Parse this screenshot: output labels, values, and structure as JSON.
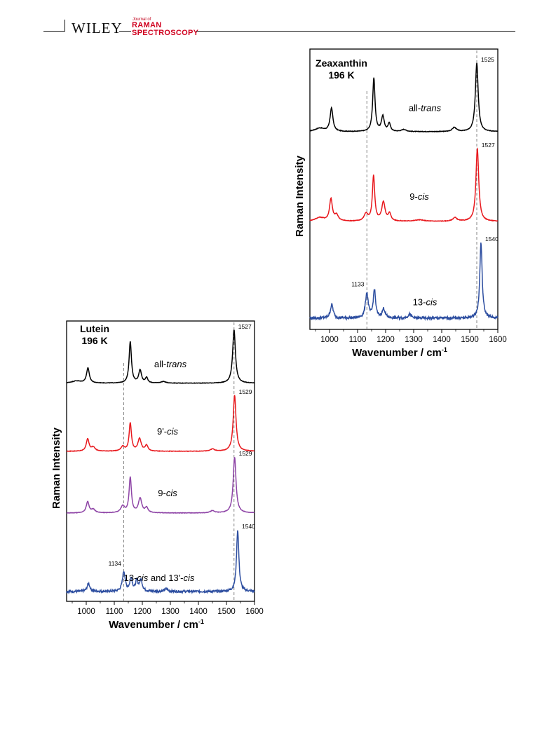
{
  "header": {
    "publisher": "WILEY",
    "journal_prefix": "Journal of",
    "journal_line1": "RAMAN",
    "journal_line2": "SPECTROSCOPY"
  },
  "chart_data": [
    {
      "type": "line",
      "title": "Zeaxanthin",
      "subtitle": "196 K",
      "xlabel": "Wavenumber / cm",
      "xlabel_sup": "-1",
      "ylabel": "Raman Intensity",
      "xlim": [
        930,
        1600
      ],
      "xticks": [
        1000,
        1100,
        1200,
        1300,
        1400,
        1500,
        1600
      ],
      "reference_lines": [
        1133,
        1525
      ],
      "series": [
        {
          "name": "all-trans",
          "label_prefix": "all-",
          "label_italic": "trans",
          "color": "#000000",
          "label_at": 1340,
          "baseline_frac": 0.295,
          "scale_frac": 0.245,
          "peaks": [
            [
              1007,
              0.34,
              6
            ],
            [
              1158,
              0.78,
              5
            ],
            [
              1190,
              0.22,
              6
            ],
            [
              1213,
              0.12,
              5
            ],
            [
              1265,
              0.03,
              10
            ],
            [
              1445,
              0.06,
              9
            ],
            [
              1525,
              1.0,
              6
            ],
            [
              965,
              0.05,
              20
            ]
          ],
          "peak_label": "1525",
          "peak_label_at": 1525
        },
        {
          "name": "9-cis",
          "label_prefix": "9-",
          "label_italic": "cis",
          "color": "#e8181d",
          "label_at": 1320,
          "baseline_frac": 0.615,
          "scale_frac": 0.26,
          "peaks": [
            [
              1005,
              0.3,
              6
            ],
            [
              1025,
              0.08,
              8
            ],
            [
              1130,
              0.1,
              8
            ],
            [
              1157,
              0.62,
              5
            ],
            [
              1192,
              0.26,
              7
            ],
            [
              1214,
              0.1,
              6
            ],
            [
              1320,
              0.02,
              20
            ],
            [
              1447,
              0.05,
              9
            ],
            [
              1527,
              1.0,
              6
            ],
            [
              965,
              0.05,
              20
            ]
          ],
          "peak_label": "1527",
          "peak_label_at": 1527
        },
        {
          "name": "13-cis",
          "label_prefix": "13-",
          "label_italic": "cis",
          "color": "#2d4ea0",
          "label_at": 1340,
          "baseline_frac": 0.96,
          "scale_frac": 0.27,
          "peaks": [
            [
              1008,
              0.18,
              6
            ],
            [
              1133,
              0.33,
              6
            ],
            [
              1160,
              0.37,
              5
            ],
            [
              1193,
              0.12,
              6
            ],
            [
              1285,
              0.05,
              7
            ],
            [
              1540,
              1.0,
              5
            ]
          ],
          "peak_label": "1540",
          "peak_label_at": 1540,
          "extra_label": "1133",
          "extra_label_at": 1133
        }
      ]
    },
    {
      "type": "line",
      "title": "Lutein",
      "subtitle": "196 K",
      "xlabel": "Wavenumber / cm",
      "xlabel_sup": "-1",
      "ylabel": "Raman Intensity",
      "xlim": [
        930,
        1600
      ],
      "xticks": [
        1000,
        1100,
        1200,
        1300,
        1400,
        1500,
        1600
      ],
      "reference_lines": [
        1134,
        1527
      ],
      "series": [
        {
          "name": "all-trans",
          "label_prefix": "all-",
          "label_italic": "trans",
          "color": "#000000",
          "label_at": 1300,
          "baseline_frac": 0.222,
          "scale_frac": 0.19,
          "peaks": [
            [
              1006,
              0.28,
              6
            ],
            [
              1157,
              0.78,
              5
            ],
            [
              1192,
              0.24,
              6
            ],
            [
              1215,
              0.1,
              5
            ],
            [
              1275,
              0.03,
              10
            ],
            [
              1527,
              1.0,
              6
            ],
            [
              965,
              0.04,
              20
            ]
          ],
          "peak_label": "1527",
          "peak_label_at": 1527
        },
        {
          "name": "9'-cis",
          "label_prefix": "9'-",
          "label_italic": "cis",
          "color": "#e8181d",
          "label_at": 1290,
          "baseline_frac": 0.465,
          "scale_frac": 0.2,
          "peaks": [
            [
              1005,
              0.22,
              6
            ],
            [
              1025,
              0.07,
              8
            ],
            [
              1130,
              0.08,
              8
            ],
            [
              1157,
              0.5,
              5
            ],
            [
              1190,
              0.22,
              7
            ],
            [
              1215,
              0.1,
              6
            ],
            [
              1450,
              0.04,
              9
            ],
            [
              1529,
              1.0,
              6
            ]
          ],
          "peak_label": "1529",
          "peak_label_at": 1529
        },
        {
          "name": "9-cis",
          "label_prefix": "9-",
          "label_italic": "cis",
          "color": "#8e44a6",
          "label_at": 1290,
          "baseline_frac": 0.685,
          "scale_frac": 0.2,
          "peaks": [
            [
              1005,
              0.2,
              6
            ],
            [
              1025,
              0.06,
              8
            ],
            [
              1130,
              0.12,
              8
            ],
            [
              1157,
              0.63,
              5
            ],
            [
              1192,
              0.26,
              7
            ],
            [
              1215,
              0.09,
              6
            ],
            [
              1450,
              0.04,
              9
            ],
            [
              1529,
              1.0,
              6
            ]
          ],
          "peak_label": "1529",
          "peak_label_at": 1529
        },
        {
          "name": "13-cis and 13'-cis",
          "label_prefix": "13-",
          "label_italic": "cis",
          "label_mid": " and 13'-",
          "label_italic2": "cis",
          "color": "#2d4ea0",
          "label_at": 1260,
          "baseline_frac": 0.965,
          "scale_frac": 0.22,
          "peaks": [
            [
              1008,
              0.13,
              6
            ],
            [
              1134,
              0.32,
              6
            ],
            [
              1160,
              0.22,
              5
            ],
            [
              1180,
              0.16,
              5
            ],
            [
              1195,
              0.18,
              6
            ],
            [
              1285,
              0.04,
              7
            ],
            [
              1540,
              1.0,
              5
            ]
          ],
          "peak_label": "1540",
          "peak_label_at": 1540,
          "extra_label": "1134",
          "extra_label_at": 1134
        }
      ]
    }
  ]
}
